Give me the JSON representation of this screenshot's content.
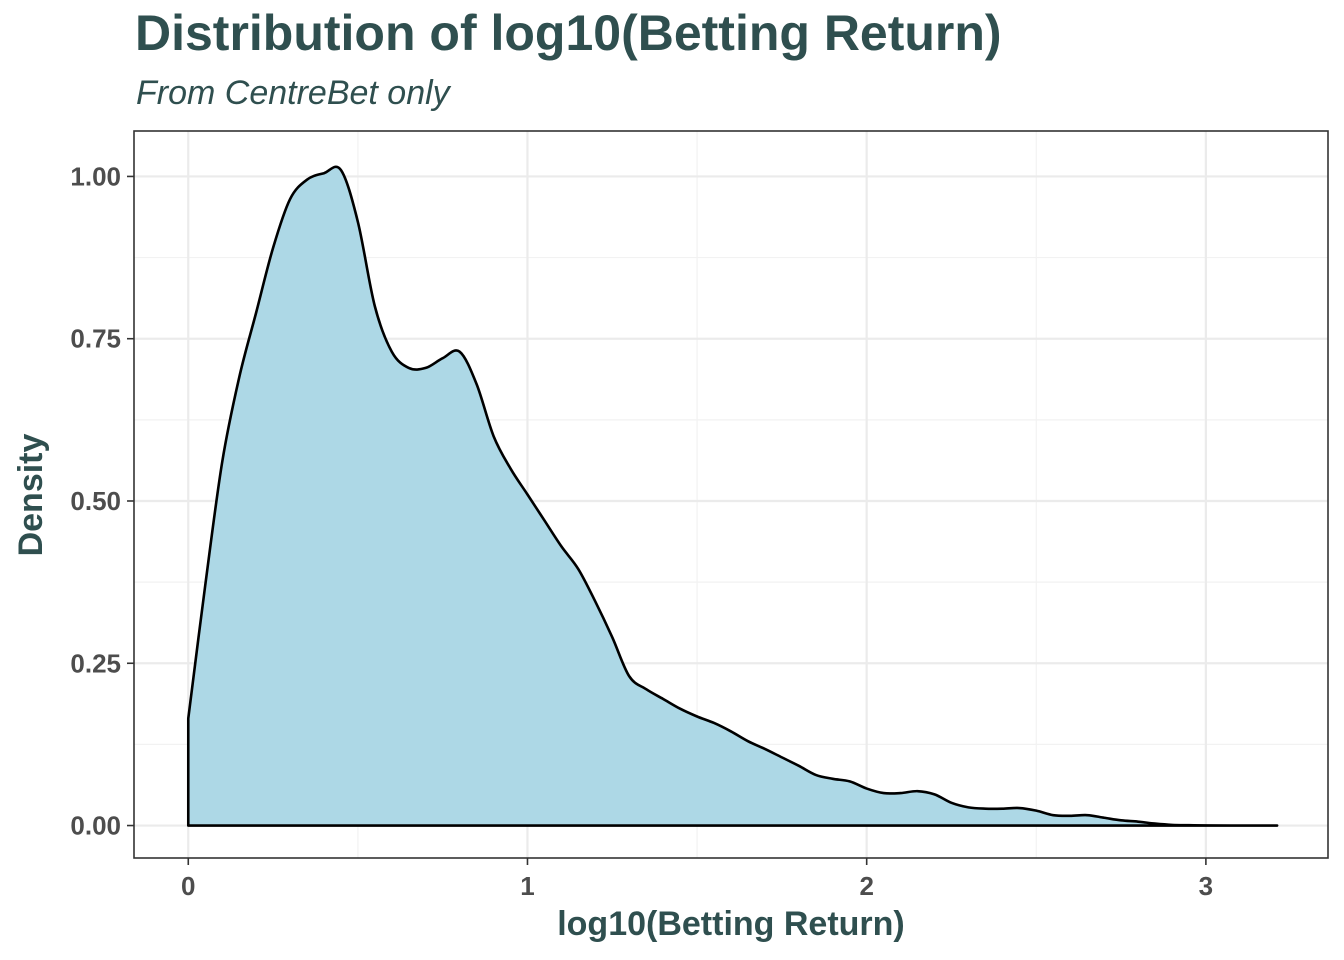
{
  "chart_data": {
    "type": "area",
    "title": "Distribution of log10(Betting Return)",
    "subtitle": "From CentreBet only",
    "xlabel": "log10(Betting Return)",
    "ylabel": "Density",
    "xlim": [
      -0.16,
      3.36
    ],
    "ylim": [
      -0.05,
      1.07
    ],
    "x_ticks": [
      0,
      1,
      2,
      3
    ],
    "x_tick_labels": [
      "0",
      "1",
      "2",
      "3"
    ],
    "y_ticks": [
      0,
      0.25,
      0.5,
      0.75,
      1.0
    ],
    "y_tick_labels": [
      "0.00",
      "0.25",
      "0.50",
      "0.75",
      "1.00"
    ],
    "grid": true,
    "legend": "none",
    "fill_color": "#add8e6",
    "line_color": "#000000",
    "x": [
      0,
      0.05,
      0.1,
      0.15,
      0.2,
      0.25,
      0.3,
      0.35,
      0.4,
      0.45,
      0.5,
      0.55,
      0.6,
      0.65,
      0.7,
      0.75,
      0.8,
      0.85,
      0.9,
      0.95,
      1.0,
      1.05,
      1.1,
      1.15,
      1.2,
      1.25,
      1.3,
      1.35,
      1.4,
      1.45,
      1.5,
      1.55,
      1.6,
      1.65,
      1.7,
      1.75,
      1.8,
      1.85,
      1.9,
      1.95,
      2.0,
      2.05,
      2.1,
      2.15,
      2.2,
      2.25,
      2.3,
      2.35,
      2.4,
      2.45,
      2.5,
      2.55,
      2.6,
      2.65,
      2.7,
      2.75,
      2.8,
      2.85,
      2.9,
      2.95,
      3.0,
      3.1,
      3.21
    ],
    "y": [
      0.165,
      0.37,
      0.56,
      0.69,
      0.79,
      0.89,
      0.965,
      0.995,
      1.005,
      1.01,
      0.93,
      0.8,
      0.73,
      0.705,
      0.705,
      0.72,
      0.73,
      0.68,
      0.6,
      0.55,
      0.51,
      0.47,
      0.43,
      0.395,
      0.345,
      0.29,
      0.23,
      0.21,
      0.195,
      0.18,
      0.168,
      0.158,
      0.145,
      0.13,
      0.118,
      0.105,
      0.092,
      0.078,
      0.072,
      0.068,
      0.057,
      0.05,
      0.05,
      0.053,
      0.048,
      0.035,
      0.028,
      0.026,
      0.026,
      0.027,
      0.023,
      0.016,
      0.015,
      0.016,
      0.012,
      0.008,
      0.006,
      0.003,
      0.001,
      0.0005,
      0.0002,
      0,
      0
    ]
  }
}
